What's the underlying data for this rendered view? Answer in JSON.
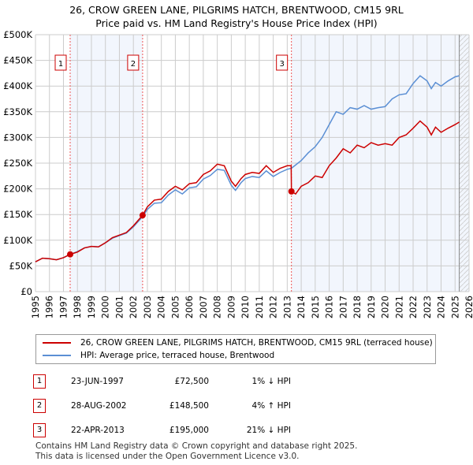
{
  "chart_data": {
    "type": "line",
    "title": "26, CROW GREEN LANE, PILGRIMS HATCH, BRENTWOOD, CM15 9RL",
    "subtitle": "Price paid vs. HM Land Registry's House Price Index (HPI)",
    "xlim": [
      1995,
      2026
    ],
    "ylim": [
      0,
      500000
    ],
    "yticks": [
      {
        "v": 0,
        "label": "£0"
      },
      {
        "v": 50000,
        "label": "£50K"
      },
      {
        "v": 100000,
        "label": "£100K"
      },
      {
        "v": 150000,
        "label": "£150K"
      },
      {
        "v": 200000,
        "label": "£200K"
      },
      {
        "v": 250000,
        "label": "£250K"
      },
      {
        "v": 300000,
        "label": "£300K"
      },
      {
        "v": 350000,
        "label": "£350K"
      },
      {
        "v": 400000,
        "label": "£400K"
      },
      {
        "v": 450000,
        "label": "£450K"
      },
      {
        "v": 500000,
        "label": "£500K"
      }
    ],
    "xticks": [
      "1995",
      "1996",
      "1997",
      "1998",
      "1999",
      "2000",
      "2001",
      "2002",
      "2003",
      "2004",
      "2005",
      "2006",
      "2007",
      "2008",
      "2009",
      "2010",
      "2011",
      "2012",
      "2013",
      "2014",
      "2015",
      "2016",
      "2017",
      "2018",
      "2019",
      "2020",
      "2021",
      "2022",
      "2023",
      "2024",
      "2025",
      "2026"
    ],
    "grid": true,
    "series": [
      {
        "name": "26, CROW GREEN LANE, PILGRIMS HATCH, BRENTWOOD, CM15 9RL (terraced house)",
        "color": "#cc0000",
        "x": [
          1995,
          1995.5,
          1996,
          1996.5,
          1997,
          1997.48,
          1998,
          1998.5,
          1999,
          1999.5,
          2000,
          2000.5,
          2001,
          2001.5,
          2002,
          2002.66,
          2003,
          2003.5,
          2004,
          2004.5,
          2005,
          2005.5,
          2006,
          2006.5,
          2007,
          2007.5,
          2008,
          2008.5,
          2009,
          2009.3,
          2009.7,
          2010,
          2010.5,
          2011,
          2011.5,
          2012,
          2012.5,
          2013,
          2013.28,
          2013.3,
          2013.6,
          2014,
          2014.5,
          2015,
          2015.5,
          2016,
          2016.5,
          2017,
          2017.5,
          2018,
          2018.5,
          2019,
          2019.5,
          2020,
          2020.5,
          2021,
          2021.5,
          2022,
          2022.5,
          2023,
          2023.3,
          2023.6,
          2024,
          2024.5,
          2025,
          2025.3
        ],
        "y": [
          58000,
          65000,
          64000,
          62000,
          66000,
          72500,
          77000,
          85000,
          88000,
          87000,
          95000,
          105000,
          110000,
          115000,
          128000,
          148500,
          165000,
          178000,
          180000,
          195000,
          205000,
          198000,
          210000,
          212000,
          228000,
          235000,
          248000,
          245000,
          215000,
          205000,
          220000,
          228000,
          232000,
          230000,
          245000,
          232000,
          240000,
          245000,
          245000,
          195000,
          190000,
          205000,
          212000,
          225000,
          222000,
          245000,
          260000,
          278000,
          270000,
          285000,
          280000,
          290000,
          285000,
          288000,
          285000,
          300000,
          305000,
          318000,
          332000,
          320000,
          305000,
          320000,
          310000,
          318000,
          325000,
          330000
        ]
      },
      {
        "name": "HPI: Average price, terraced house, Brentwood",
        "color": "#5b8fd4",
        "x": [
          1995,
          1995.5,
          1996,
          1996.5,
          1997,
          1997.48,
          1998,
          1998.5,
          1999,
          1999.5,
          2000,
          2000.5,
          2001,
          2001.5,
          2002,
          2002.66,
          2003,
          2003.5,
          2004,
          2004.5,
          2005,
          2005.5,
          2006,
          2006.5,
          2007,
          2007.5,
          2008,
          2008.5,
          2009,
          2009.3,
          2009.7,
          2010,
          2010.5,
          2011,
          2011.5,
          2012,
          2012.5,
          2013,
          2013.3,
          2014,
          2014.5,
          2015,
          2015.5,
          2016,
          2016.5,
          2017,
          2017.5,
          2018,
          2018.5,
          2019,
          2019.5,
          2020,
          2020.5,
          2021,
          2021.5,
          2022,
          2022.5,
          2023,
          2023.3,
          2023.6,
          2024,
          2024.5,
          2025,
          2025.3
        ],
        "y": [
          58000,
          65000,
          64000,
          62000,
          66000,
          72500,
          78000,
          85000,
          88000,
          87000,
          95000,
          104000,
          109000,
          114000,
          126000,
          146000,
          160000,
          172000,
          173000,
          188000,
          198000,
          190000,
          202000,
          204000,
          219000,
          226000,
          238000,
          236000,
          207000,
          197000,
          212000,
          220000,
          224000,
          222000,
          235000,
          224000,
          232000,
          238000,
          240000,
          255000,
          270000,
          282000,
          300000,
          325000,
          350000,
          345000,
          358000,
          355000,
          362000,
          355000,
          358000,
          360000,
          375000,
          383000,
          385000,
          405000,
          420000,
          410000,
          395000,
          407000,
          400000,
          410000,
          418000,
          420000
        ]
      }
    ],
    "sales": [
      {
        "n": "1",
        "x": 1997.48,
        "y": 72500
      },
      {
        "n": "2",
        "x": 2002.66,
        "y": 148500
      },
      {
        "n": "3",
        "x": 2013.3,
        "y": 195000
      }
    ],
    "shaded": [
      [
        1997.48,
        2002.66
      ],
      [
        2013.3,
        2026
      ]
    ],
    "hatch_from": 2025.3
  },
  "table": [
    {
      "n": "1",
      "date": "23-JUN-1997",
      "price": "£72,500",
      "hpi": "1% ↓ HPI"
    },
    {
      "n": "2",
      "date": "28-AUG-2002",
      "price": "£148,500",
      "hpi": "4% ↑ HPI"
    },
    {
      "n": "3",
      "date": "22-APR-2013",
      "price": "£195,000",
      "hpi": "21% ↓ HPI"
    }
  ],
  "footer": [
    "Contains HM Land Registry data © Crown copyright and database right 2025.",
    "This data is licensed under the Open Government Licence v3.0."
  ]
}
